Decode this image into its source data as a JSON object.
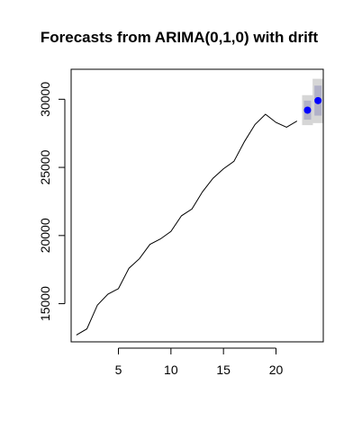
{
  "chart_data": {
    "type": "line",
    "title": "Forecasts from ARIMA(0,1,0) with drift",
    "xlabel": "",
    "ylabel": "",
    "xlim": [
      0.5,
      24.5
    ],
    "ylim": [
      12200,
      32200
    ],
    "x_ticks": [
      5,
      10,
      15,
      20
    ],
    "y_ticks": [
      15000,
      20000,
      25000,
      30000
    ],
    "grid": false,
    "series": [
      {
        "x": [
          1,
          2,
          3,
          4,
          5,
          6,
          7,
          8,
          9,
          10,
          11,
          12,
          13,
          14,
          15,
          16,
          17,
          18,
          19,
          20,
          21,
          22
        ],
        "values": [
          12700,
          13150,
          14900,
          15700,
          16100,
          17600,
          18300,
          19350,
          19750,
          20300,
          21450,
          21950,
          23200,
          24200,
          24900,
          25450,
          26900,
          28150,
          28900,
          28300,
          27950,
          28400
        ],
        "color": "#000000"
      }
    ],
    "forecast": {
      "x": [
        23,
        24
      ],
      "point": [
        29200,
        29900
      ],
      "lo80": [
        28500,
        28800
      ],
      "hi80": [
        29900,
        31000
      ],
      "lo95": [
        28100,
        28250
      ],
      "hi95": [
        30300,
        31500
      ],
      "point_color": "#0000ff",
      "band80_color": "#b1b1c7",
      "band95_color": "#d6d6d6"
    }
  }
}
